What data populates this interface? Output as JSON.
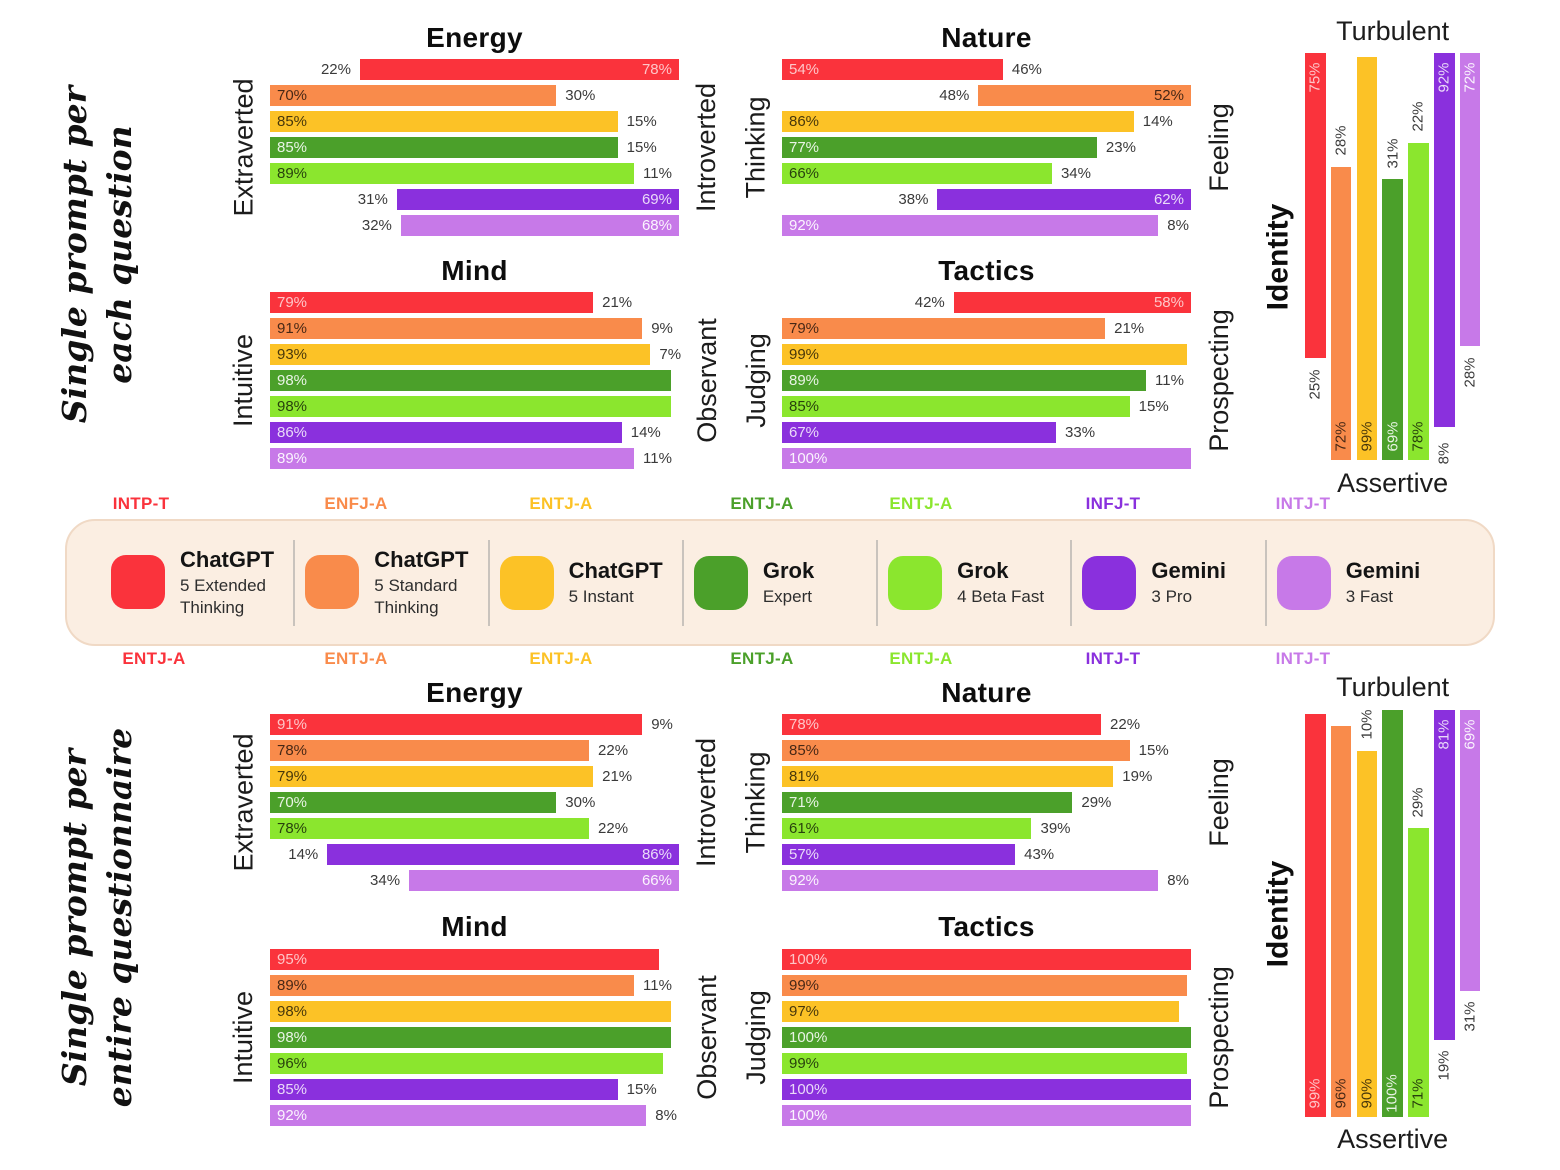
{
  "page": {
    "background": "#ffffff"
  },
  "models": [
    {
      "name": "ChatGPT",
      "variant": "5 Extended Thinking",
      "color": "#FA333C",
      "bar_text_color": "rgba(255,255,255,0.72)",
      "mbti_per_question": "INTP-T",
      "mbti_per_questionnaire": "ENTJ-A"
    },
    {
      "name": "ChatGPT",
      "variant": "5 Standard Thinking",
      "color": "#F98B4B",
      "bar_text_color": "rgba(0,0,0,0.72)",
      "mbti_per_question": "ENFJ-A",
      "mbti_per_questionnaire": "ENTJ-A"
    },
    {
      "name": "ChatGPT",
      "variant": "5 Instant",
      "color": "#FCC226",
      "bar_text_color": "rgba(0,0,0,0.72)",
      "mbti_per_question": "ENTJ-A",
      "mbti_per_questionnaire": "ENTJ-A"
    },
    {
      "name": "Grok",
      "variant": "Expert",
      "color": "#4BA02A",
      "bar_text_color": "rgba(255,255,255,0.88)",
      "mbti_per_question": "ENTJ-A",
      "mbti_per_questionnaire": "ENTJ-A"
    },
    {
      "name": "Grok",
      "variant": "4 Beta Fast",
      "color": "#8BE62E",
      "bar_text_color": "rgba(0,0,0,0.72)",
      "mbti_per_question": "ENTJ-A",
      "mbti_per_questionnaire": "ENTJ-A"
    },
    {
      "name": "Gemini",
      "variant": "3 Pro",
      "color": "#8A30DD",
      "bar_text_color": "rgba(255,255,255,0.82)",
      "mbti_per_question": "INFJ-T",
      "mbti_per_questionnaire": "INTJ-T"
    },
    {
      "name": "Gemini",
      "variant": "3 Fast",
      "color": "#C779E8",
      "bar_text_color": "rgba(255,255,255,0.92)",
      "mbti_per_question": "INTJ-T",
      "mbti_per_questionnaire": "INTJ-T"
    }
  ],
  "sections": [
    {
      "id": "per-question",
      "title_line1": "Single prompt per",
      "title_line2": "each question"
    },
    {
      "id": "per-questionnaire",
      "title_line1": "Single prompt per",
      "title_line2": "entire questionnaire"
    }
  ],
  "chart_data": [
    {
      "id": "q-energy",
      "section": "Single prompt per each question",
      "type": "bar",
      "orientation": "horizontal",
      "title": "Energy",
      "axis_left_label": "Extraverted",
      "axis_right_label": "Introverted",
      "categories": [
        "ChatGPT 5 Extended Thinking",
        "ChatGPT 5 Standard Thinking",
        "ChatGPT 5 Instant",
        "Grok Expert",
        "Grok 4 Beta Fast",
        "Gemini 3 Pro",
        "Gemini 3 Fast"
      ],
      "series": [
        {
          "name": "Extraverted",
          "values": [
            22,
            70,
            85,
            85,
            89,
            31,
            32
          ]
        },
        {
          "name": "Introverted",
          "values": [
            78,
            30,
            15,
            15,
            11,
            69,
            68
          ]
        }
      ]
    },
    {
      "id": "q-nature",
      "section": "Single prompt per each question",
      "type": "bar",
      "orientation": "horizontal",
      "title": "Nature",
      "axis_left_label": "Thinking",
      "axis_right_label": "Feeling",
      "categories": [
        "ChatGPT 5 Extended Thinking",
        "ChatGPT 5 Standard Thinking",
        "ChatGPT 5 Instant",
        "Grok Expert",
        "Grok 4 Beta Fast",
        "Gemini 3 Pro",
        "Gemini 3 Fast"
      ],
      "series": [
        {
          "name": "Thinking",
          "values": [
            54,
            48,
            86,
            77,
            66,
            38,
            92
          ]
        },
        {
          "name": "Feeling",
          "values": [
            46,
            52,
            14,
            23,
            34,
            62,
            8
          ]
        }
      ]
    },
    {
      "id": "q-mind",
      "section": "Single prompt per each question",
      "type": "bar",
      "orientation": "horizontal",
      "title": "Mind",
      "axis_left_label": "Intuitive",
      "axis_right_label": "Observant",
      "categories": [
        "ChatGPT 5 Extended Thinking",
        "ChatGPT 5 Standard Thinking",
        "ChatGPT 5 Instant",
        "Grok Expert",
        "Grok 4 Beta Fast",
        "Gemini 3 Pro",
        "Gemini 3 Fast"
      ],
      "series": [
        {
          "name": "Intuitive",
          "values": [
            79,
            91,
            93,
            98,
            98,
            86,
            89
          ]
        },
        {
          "name": "Observant",
          "values": [
            21,
            9,
            7,
            2,
            2,
            14,
            11
          ]
        }
      ]
    },
    {
      "id": "q-tactics",
      "section": "Single prompt per each question",
      "type": "bar",
      "orientation": "horizontal",
      "title": "Tactics",
      "axis_left_label": "Judging",
      "axis_right_label": "Prospecting",
      "categories": [
        "ChatGPT 5 Extended Thinking",
        "ChatGPT 5 Standard Thinking",
        "ChatGPT 5 Instant",
        "Grok Expert",
        "Grok 4 Beta Fast",
        "Gemini 3 Pro",
        "Gemini 3 Fast"
      ],
      "series": [
        {
          "name": "Judging",
          "values": [
            42,
            79,
            99,
            89,
            85,
            67,
            100
          ]
        },
        {
          "name": "Prospecting",
          "values": [
            58,
            21,
            1,
            11,
            15,
            33,
            0
          ]
        }
      ]
    },
    {
      "id": "q-identity",
      "section": "Single prompt per each question",
      "type": "bar",
      "orientation": "vertical",
      "title_top": "Turbulent",
      "title_bottom": "Assertive",
      "axis_label": "Identity",
      "categories": [
        "ChatGPT 5 Extended Thinking",
        "ChatGPT 5 Standard Thinking",
        "ChatGPT 5 Instant",
        "Grok Expert",
        "Grok 4 Beta Fast",
        "Gemini 3 Pro",
        "Gemini 3 Fast"
      ],
      "series": [
        {
          "name": "Turbulent",
          "values": [
            75,
            28,
            1,
            31,
            22,
            92,
            72
          ]
        },
        {
          "name": "Assertive",
          "values": [
            25,
            72,
            99,
            69,
            78,
            8,
            28
          ]
        }
      ]
    },
    {
      "id": "f-energy",
      "section": "Single prompt per entire questionnaire",
      "type": "bar",
      "orientation": "horizontal",
      "title": "Energy",
      "axis_left_label": "Extraverted",
      "axis_right_label": "Introverted",
      "categories": [
        "ChatGPT 5 Extended Thinking",
        "ChatGPT 5 Standard Thinking",
        "ChatGPT 5 Instant",
        "Grok Expert",
        "Grok 4 Beta Fast",
        "Gemini 3 Pro",
        "Gemini 3 Fast"
      ],
      "series": [
        {
          "name": "Extraverted",
          "values": [
            91,
            78,
            79,
            70,
            78,
            14,
            34
          ]
        },
        {
          "name": "Introverted",
          "values": [
            9,
            22,
            21,
            30,
            22,
            86,
            66
          ]
        }
      ]
    },
    {
      "id": "f-nature",
      "section": "Single prompt per entire questionnaire",
      "type": "bar",
      "orientation": "horizontal",
      "title": "Nature",
      "axis_left_label": "Thinking",
      "axis_right_label": "Feeling",
      "categories": [
        "ChatGPT 5 Extended Thinking",
        "ChatGPT 5 Standard Thinking",
        "ChatGPT 5 Instant",
        "Grok Expert",
        "Grok 4 Beta Fast",
        "Gemini 3 Pro",
        "Gemini 3 Fast"
      ],
      "series": [
        {
          "name": "Thinking",
          "values": [
            78,
            85,
            81,
            71,
            61,
            57,
            92
          ]
        },
        {
          "name": "Feeling",
          "values": [
            22,
            15,
            19,
            29,
            39,
            43,
            8
          ]
        }
      ]
    },
    {
      "id": "f-mind",
      "section": "Single prompt per entire questionnaire",
      "type": "bar",
      "orientation": "horizontal",
      "title": "Mind",
      "axis_left_label": "Intuitive",
      "axis_right_label": "Observant",
      "categories": [
        "ChatGPT 5 Extended Thinking",
        "ChatGPT 5 Standard Thinking",
        "ChatGPT 5 Instant",
        "Grok Expert",
        "Grok 4 Beta Fast",
        "Gemini 3 Pro",
        "Gemini 3 Fast"
      ],
      "series": [
        {
          "name": "Intuitive",
          "values": [
            95,
            89,
            98,
            98,
            96,
            85,
            92
          ]
        },
        {
          "name": "Observant",
          "values": [
            5,
            11,
            2,
            2,
            4,
            15,
            8
          ]
        }
      ]
    },
    {
      "id": "f-tactics",
      "section": "Single prompt per entire questionnaire",
      "type": "bar",
      "orientation": "horizontal",
      "title": "Tactics",
      "axis_left_label": "Judging",
      "axis_right_label": "Prospecting",
      "categories": [
        "ChatGPT 5 Extended Thinking",
        "ChatGPT 5 Standard Thinking",
        "ChatGPT 5 Instant",
        "Grok Expert",
        "Grok 4 Beta Fast",
        "Gemini 3 Pro",
        "Gemini 3 Fast"
      ],
      "series": [
        {
          "name": "Judging",
          "values": [
            100,
            99,
            97,
            100,
            99,
            100,
            100
          ]
        },
        {
          "name": "Prospecting",
          "values": [
            0,
            1,
            3,
            0,
            1,
            0,
            0
          ]
        }
      ]
    },
    {
      "id": "f-identity",
      "section": "Single prompt per entire questionnaire",
      "type": "bar",
      "orientation": "vertical",
      "title_top": "Turbulent",
      "title_bottom": "Assertive",
      "axis_label": "Identity",
      "categories": [
        "ChatGPT 5 Extended Thinking",
        "ChatGPT 5 Standard Thinking",
        "ChatGPT 5 Instant",
        "Grok Expert",
        "Grok 4 Beta Fast",
        "Gemini 3 Pro",
        "Gemini 3 Fast"
      ],
      "series": [
        {
          "name": "Turbulent",
          "values": [
            1,
            4,
            10,
            0,
            29,
            81,
            69
          ]
        },
        {
          "name": "Assertive",
          "values": [
            99,
            96,
            90,
            100,
            71,
            19,
            31
          ]
        }
      ]
    }
  ]
}
